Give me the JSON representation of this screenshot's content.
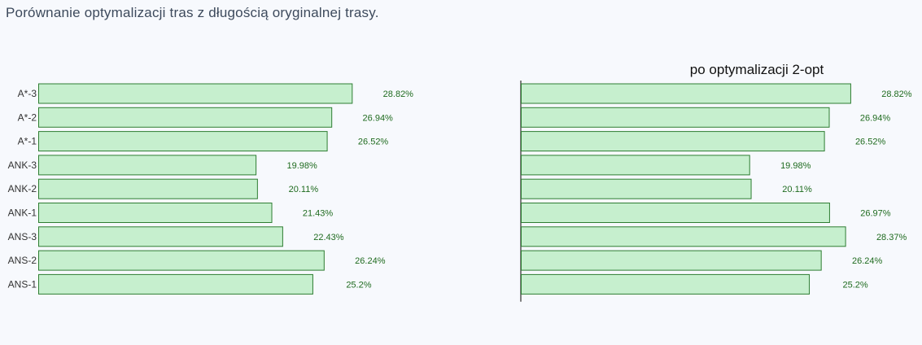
{
  "page": {
    "title": "Porównanie optymalizacji tras z długością oryginalnej trasy."
  },
  "colors": {
    "bar_fill": "#c6efce",
    "bar_stroke": "#2e7d32",
    "value_text": "#1f6b1f",
    "background": "#f7f9fd"
  },
  "chart_data": [
    {
      "type": "bar",
      "orientation": "horizontal",
      "title": "",
      "categories": [
        "A*-3",
        "A*-2",
        "A*-1",
        "ANK-3",
        "ANK-2",
        "ANK-1",
        "ANS-3",
        "ANS-2",
        "ANS-1"
      ],
      "values": [
        28.82,
        26.94,
        26.52,
        19.98,
        20.11,
        21.43,
        22.43,
        26.24,
        25.2
      ],
      "value_labels": [
        "28.82%",
        "26.94%",
        "26.52%",
        "19.98%",
        "20.11%",
        "21.43%",
        "22.43%",
        "26.24%",
        "25.2%"
      ],
      "xlim": [
        0,
        30
      ],
      "grid": false
    },
    {
      "type": "bar",
      "orientation": "horizontal",
      "title": "po optymalizacji 2-opt",
      "categories": [
        "A*-3",
        "A*-2",
        "A*-1",
        "ANK-3",
        "ANK-2",
        "ANK-1",
        "ANS-3",
        "ANS-2",
        "ANS-1"
      ],
      "values": [
        28.82,
        26.94,
        26.52,
        19.98,
        20.11,
        26.97,
        28.37,
        26.24,
        25.2
      ],
      "value_labels": [
        "28.82%",
        "26.94%",
        "26.52%",
        "19.98%",
        "20.11%",
        "26.97%",
        "28.37%",
        "26.24%",
        "25.2%"
      ],
      "xlim": [
        0,
        30
      ],
      "grid": false
    }
  ]
}
